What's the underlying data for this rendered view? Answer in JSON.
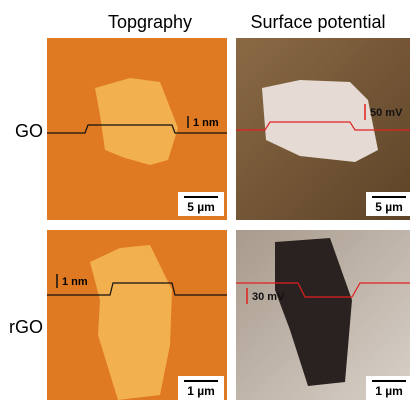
{
  "columns": [
    "Topgraphy",
    "Surface potential"
  ],
  "rows": [
    {
      "label": "GO",
      "panels": [
        {
          "scale_note": "1 nm",
          "scale_bar": "5 µm"
        },
        {
          "scale_note": "50 mV",
          "scale_bar": "5 µm"
        }
      ]
    },
    {
      "label": "rGO",
      "panels": [
        {
          "scale_note": "1 nm",
          "scale_bar": "1 µm"
        },
        {
          "scale_note": "30 mV",
          "scale_bar": "1 µm"
        }
      ]
    }
  ]
}
